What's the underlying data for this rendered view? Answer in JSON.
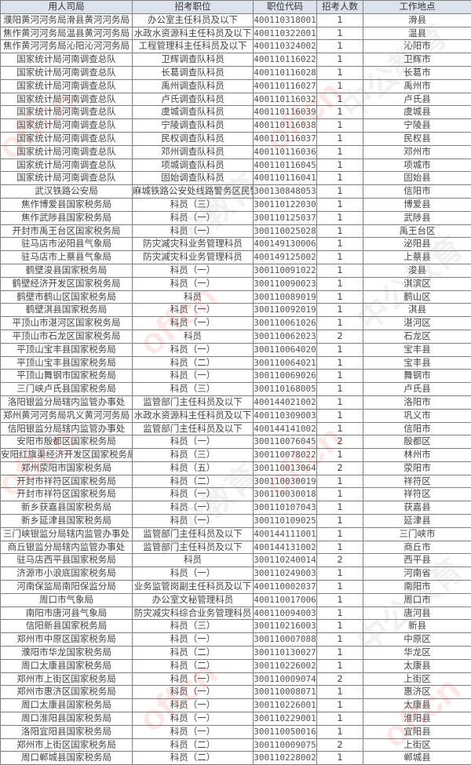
{
  "table": {
    "headers": [
      "用人司局",
      "招考职位",
      "职位代码",
      "招考人数",
      "工作地点"
    ],
    "rows": [
      [
        "濮阳黄河河务局滑县黄河河务局",
        "办公室主任科员及以下",
        "400110318001",
        "1",
        "滑县"
      ],
      [
        "焦作黄河河务局温县黄河河务局",
        "水政水资源科主任科员及以下",
        "400110322001",
        "1",
        "温县"
      ],
      [
        "焦作黄河河务局沁阳沁河河务局",
        "工程管理科主任科员及以下",
        "400110324002",
        "1",
        "沁阳市"
      ],
      [
        "国家统计局河南调查总队",
        "卫辉调查队科员",
        "400110116022",
        "1",
        "卫辉市"
      ],
      [
        "国家统计局河南调查总队",
        "长葛调查队科员",
        "400110116028",
        "1",
        "长葛市"
      ],
      [
        "国家统计局河南调查总队",
        "禹州调查队科员",
        "400110116027",
        "1",
        "禹州市"
      ],
      [
        "国家统计局河南调查总队",
        "卢氏调查队科员",
        "400110116032",
        "1",
        "卢氏县"
      ],
      [
        "国家统计局河南调查总队",
        "虞城调查队科员",
        "400110116039",
        "1",
        "虞城县"
      ],
      [
        "国家统计局河南调查总队",
        "宁陵调查队科员",
        "400110116038",
        "1",
        "宁陵县"
      ],
      [
        "国家统计局河南调查总队",
        "民权调查队科员",
        "400110116037",
        "1",
        "民权县"
      ],
      [
        "国家统计局河南调查总队",
        "邓州调查队科员",
        "400110116036",
        "1",
        "邓州市"
      ],
      [
        "国家统计局河南调查总队",
        "项城调查队科员",
        "400110116045",
        "1",
        "项城市"
      ],
      [
        "国家统计局河南调查总队",
        "固始调查队科员",
        "400110116041",
        "1",
        "固始县"
      ],
      [
        "武汉铁路公安局",
        "麻城铁路公安处线路警务区民警",
        "300130848053",
        "1",
        "信阳市"
      ],
      [
        "焦作博爱县国家税务局",
        "科员（三）",
        "300110122030",
        "1",
        "博爱县"
      ],
      [
        "焦作武陟县国家税务局",
        "科员（一）",
        "300110125037",
        "1",
        "武陟县"
      ],
      [
        "开封市禹王台区国家税务局",
        "科员（一）",
        "300110025028",
        "1",
        "禹王台区"
      ],
      [
        "驻马店市泌阳县气象局",
        "防灾减灾科业务管理科员",
        "400149130006",
        "1",
        "泌阳县"
      ],
      [
        "驻马店市上蔡县气象局",
        "防灾减灾科业务管理科员",
        "400149125002",
        "1",
        "上蔡县"
      ],
      [
        "鹤壁浚县国家税务局",
        "科员（一）",
        "300110091022",
        "1",
        "浚县"
      ],
      [
        "鹤壁经济开发区国家税务局",
        "科员（一）",
        "300110090023",
        "1",
        "淇滨区"
      ],
      [
        "鹤壁市鹤山区国家税务局",
        "科员",
        "300110089019",
        "1",
        "鹤山区"
      ],
      [
        "鹤壁淇县国家税务局",
        "科员（一）",
        "300110092019",
        "1",
        "淇县"
      ],
      [
        "平顶山市湛河区国家税务局",
        "科员（一）",
        "300110061026",
        "1",
        "湛河区"
      ],
      [
        "平顶山市石龙区国家税务局",
        "科员",
        "300110062023",
        "2",
        "石龙区"
      ],
      [
        "平顶山宝丰县国家税务局",
        "科员（一）",
        "300110064020",
        "1",
        "宝丰县"
      ],
      [
        "平顶山宝丰县国家税务局",
        "科员（二）",
        "300110064021",
        "1",
        "宝丰县"
      ],
      [
        "平顶山舞钢市国家税务局",
        "科员（一）",
        "300110069026",
        "1",
        "舞钢市"
      ],
      [
        "三门峡卢氏县国家税务局",
        "科员（三）",
        "300110168005",
        "1",
        "卢氏县"
      ],
      [
        "洛阳银监分局辖内监管办事处",
        "监管部门主任科员及以下",
        "400144021002",
        "1",
        "洛阳市"
      ],
      [
        "郑州黄河河务局巩义黄河河务局",
        "水政水资源科主任科员及以下",
        "400110309003",
        "1",
        "巩义市"
      ],
      [
        "信阳银监分局辖内监管办事处",
        "监管部门主任科员及以下",
        "400144141002",
        "1",
        "信阳市"
      ],
      [
        "安阳市殷都区国家税务局",
        "科员（一）",
        "300110076045",
        "2",
        "殷都区"
      ],
      [
        "安阳红旗渠经济开发区国家税务局",
        "科员（三）",
        "300110078022",
        "1",
        "林州市"
      ],
      [
        "郑州荥阳市国家税务局",
        "科员（五）",
        "300110013064",
        "2",
        "荥阳市"
      ],
      [
        "开封市祥符区国家税务局",
        "科员（二）",
        "300110030019",
        "1",
        "祥符区"
      ],
      [
        "开封市祥符区国家税务局",
        "科员（一）",
        "300110030018",
        "1",
        "祥符区"
      ],
      [
        "新乡获嘉县国家税务局",
        "科员（一）",
        "300110107043",
        "1",
        "获嘉县"
      ],
      [
        "新乡延津县国家税务局",
        "科员（一）",
        "300110109025",
        "1",
        "延津县"
      ],
      [
        "三门峡银监分局辖内监管办事处",
        "监管部门主任科员及以下",
        "400144111001",
        "1",
        "三门峡市"
      ],
      [
        "商丘银监分局辖内监管办事处",
        "监管部门主任科员及以下",
        "400144131002",
        "1",
        "商丘市"
      ],
      [
        "驻马店西平县国家税务局",
        "科员",
        "300110240014",
        "2",
        "西平县"
      ],
      [
        "济源市小浪底国家税务局",
        "科员（一）",
        "300110249003",
        "1",
        "河南省"
      ],
      [
        "河南保监局南阳保监分局",
        "业务监管岗副主任科员及以下",
        "400110002037",
        "1",
        "南阳市"
      ],
      [
        "周口市气象局",
        "办公室文秘管理科员",
        "400110017006",
        "1",
        "周口市"
      ],
      [
        "南阳市唐河县气象局",
        "防灾减灾科综合业务管理科员",
        "400110094003",
        "1",
        "唐河县"
      ],
      [
        "信阳新县国家税务局",
        "科员（三）",
        "300110216003",
        "1",
        "新县"
      ],
      [
        "郑州市中原区国家税务局",
        "科员（一）",
        "300110007088",
        "1",
        "中原区"
      ],
      [
        "濮阳市华龙国家税务局",
        "科员（二）",
        "300110130027",
        "1",
        "华龙区"
      ],
      [
        "周口太康县国家税务局",
        "科员（二）",
        "300110226002",
        "1",
        "太康县"
      ],
      [
        "郑州市上街区国家税务局",
        "科员（一）",
        "300110009074",
        "2",
        "上街区"
      ],
      [
        "郑州市惠济区国家税务局",
        "科员（一）",
        "300110008071",
        "1",
        "惠济区"
      ],
      [
        "周口太康县国家税务局",
        "科员（一）",
        "300110226001",
        "1",
        "太康县"
      ],
      [
        "周口淮阳县国家税务局",
        "科员（一）",
        "300110229001",
        "1",
        "淮阳县"
      ],
      [
        "洛阳宜阳县国家税务局",
        "科员（一）",
        "300110050016",
        "1",
        "宜阳县"
      ],
      [
        "郑州市上街区国家税务局",
        "科员（二）",
        "300110009075",
        "2",
        "上街区"
      ],
      [
        "周口郸城县国家税务局",
        "科员（二）",
        "300110228002",
        "1",
        "郸城县"
      ]
    ]
  },
  "watermark": {
    "text_latin": "offcn",
    "text_cn": "中公教育"
  },
  "colors": {
    "header_bg": "#dde3ec",
    "border": "#7f7f7f",
    "watermark": "#e63c3c"
  }
}
